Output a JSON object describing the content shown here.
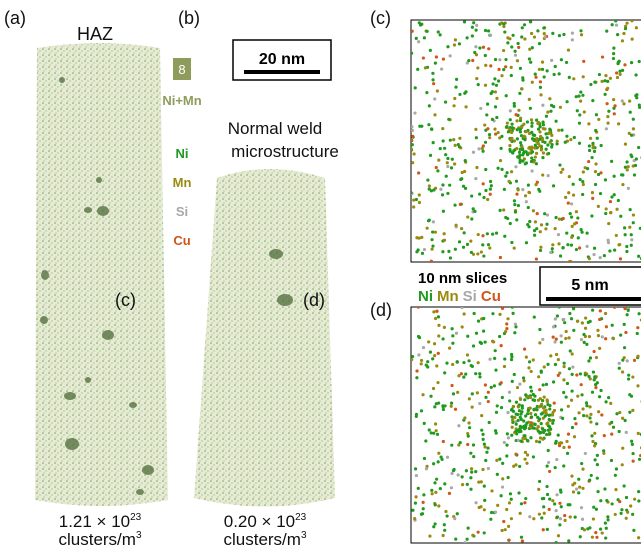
{
  "panel_a": {
    "label": "(a)",
    "title": "HAZ",
    "slice_label": "(c)",
    "density": {
      "mantissa": "1.21 × 10",
      "exponent": "23",
      "unit": "clusters/m",
      "unit_exponent": "3"
    }
  },
  "panel_b": {
    "label": "(b)",
    "title_line1": "Normal weld",
    "title_line2": "microstructure",
    "slice_label": "(d)",
    "density": {
      "mantissa": "0.20 × 10",
      "exponent": "23",
      "unit": "clusters/m",
      "unit_exponent": "3"
    }
  },
  "legend": {
    "isosurface": "8",
    "isosurface_label": "Ni+Mn",
    "elements": [
      "Ni",
      "Mn",
      "Si",
      "Cu"
    ]
  },
  "scale_bar_large": "20 nm",
  "panel_c": {
    "label": "(c)"
  },
  "panel_d": {
    "label": "(d)"
  },
  "slices": {
    "title": "10 nm slices",
    "elements": [
      "Ni",
      "Mn",
      "Si",
      "Cu"
    ],
    "scale_bar": "5 nm"
  }
}
